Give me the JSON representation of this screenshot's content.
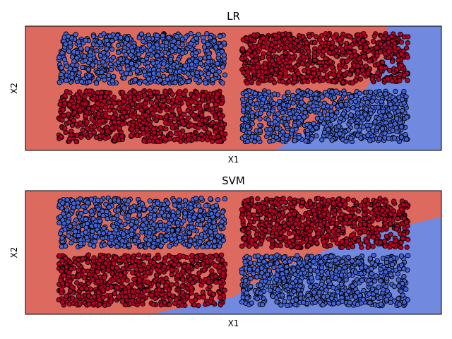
{
  "colors": {
    "class0_region": "#dd6a5f",
    "class1_region": "#7189de",
    "class0_point": "#b40426",
    "class1_point": "#4563d2",
    "point_edge": "#000000",
    "frame": "#000000"
  },
  "chart_data": [
    {
      "type": "scatter",
      "title": "LR",
      "xlabel": "X1",
      "ylabel": "X2",
      "grid": false,
      "legend": "none",
      "ticks": "hidden",
      "xlim": [
        0,
        1
      ],
      "ylim": [
        0,
        1
      ],
      "clusters": [
        {
          "class": 1,
          "color": "class1_point",
          "x": [
            0.08,
            0.48
          ],
          "y": [
            0.54,
            0.94
          ],
          "count": 750
        },
        {
          "class": 0,
          "color": "class0_point",
          "x": [
            0.08,
            0.48
          ],
          "y": [
            0.07,
            0.48
          ],
          "count": 750
        },
        {
          "class": 0,
          "color": "class0_point",
          "x": [
            0.52,
            0.92
          ],
          "y": [
            0.54,
            0.94
          ],
          "count": 750
        },
        {
          "class": 1,
          "color": "class1_point",
          "x": [
            0.52,
            0.92
          ],
          "y": [
            0.07,
            0.48
          ],
          "count": 750
        }
      ],
      "decision_boundary": {
        "x": [
          0.6,
          0.72,
          0.82,
          0.86,
          0.87
        ],
        "y": [
          0.0,
          0.25,
          0.5,
          0.75,
          1.0
        ]
      }
    },
    {
      "type": "scatter",
      "title": "SVM",
      "xlabel": "X1",
      "ylabel": "X2",
      "grid": false,
      "legend": "none",
      "ticks": "hidden",
      "xlim": [
        0,
        1
      ],
      "ylim": [
        0,
        1
      ],
      "clusters": [
        {
          "class": 1,
          "color": "class1_point",
          "x": [
            0.08,
            0.48
          ],
          "y": [
            0.54,
            0.94
          ],
          "count": 750
        },
        {
          "class": 0,
          "color": "class0_point",
          "x": [
            0.08,
            0.48
          ],
          "y": [
            0.07,
            0.48
          ],
          "count": 750
        },
        {
          "class": 0,
          "color": "class0_point",
          "x": [
            0.52,
            0.92
          ],
          "y": [
            0.54,
            0.94
          ],
          "count": 750
        },
        {
          "class": 1,
          "color": "class1_point",
          "x": [
            0.52,
            0.92
          ],
          "y": [
            0.07,
            0.48
          ],
          "count": 750
        }
      ],
      "decision_boundary": {
        "x": [
          0.3,
          0.5,
          0.6,
          0.8,
          1.0
        ],
        "y": [
          0.0,
          0.14,
          0.35,
          0.62,
          0.79
        ]
      }
    }
  ]
}
